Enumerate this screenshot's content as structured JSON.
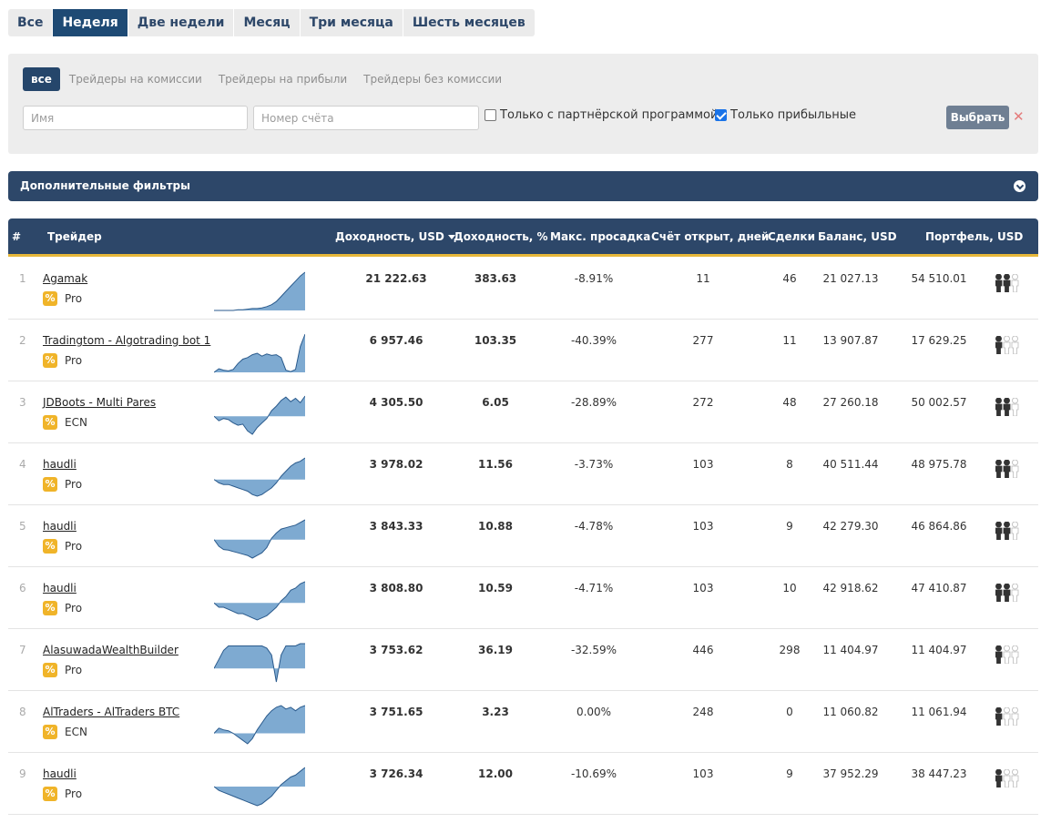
{
  "period_tabs": [
    "Все",
    "Неделя",
    "Две недели",
    "Месяц",
    "Три месяца",
    "Шесть месяцев"
  ],
  "period_active": 1,
  "type_tabs": [
    "все",
    "Трейдеры на комиссии",
    "Трейдеры на прибыли",
    "Трейдеры без комиссии"
  ],
  "type_active": 0,
  "filters": {
    "name_placeholder": "Имя",
    "account_placeholder": "Номер счёта",
    "partner_label": "Только с партнёрской программой",
    "partner_checked": false,
    "profitable_label": "Только прибыльные",
    "profitable_checked": true,
    "select_label": "Выбрать",
    "clear_icon": "close-icon"
  },
  "additional_filters": {
    "label": "Дополнительные фильтры",
    "toggle_icon": "chevron-down-icon"
  },
  "columns": {
    "num": "#",
    "trader": "Трейдер",
    "profit_usd": "Доходность, USD",
    "profit_pct": "Доходность, %",
    "drawdown": "Макс. просадка",
    "days": "Счёт открыт, дней",
    "deals": "Сделки",
    "balance": "Баланс, USD",
    "portfolio": "Портфель, USD"
  },
  "colors": {
    "navy": "#2d4769",
    "active_tab": "#1e4a74",
    "gold": "#e6b73a",
    "badge": "#f0b429",
    "spark_fill": "#7eaad1",
    "spark_line": "#2a5a8c"
  },
  "rows": [
    {
      "num": "1",
      "name": "Agamak",
      "type": "Pro",
      "profit_usd": "21 222.63",
      "profit_pct": "383.63",
      "drawdown": "-8.91%",
      "days": "11",
      "deals": "46",
      "balance": "21 027.13",
      "portfolio": "54 510.01",
      "popularity": 2,
      "spark": [
        0,
        0,
        0,
        0,
        0,
        0.1,
        0.1,
        0.2,
        0.3,
        0.3,
        0.4,
        0.6,
        0.9,
        1.4,
        2.2,
        3.0,
        3.8,
        4.6,
        5.4,
        6.0
      ]
    },
    {
      "num": "2",
      "name": "Tradingtom - Algotrading bot 1",
      "type": "Pro",
      "profit_usd": "6 957.46",
      "profit_pct": "103.35",
      "drawdown": "-40.39%",
      "days": "277",
      "deals": "11",
      "balance": "13 907.87",
      "portfolio": "17 629.25",
      "popularity": 1,
      "spark": [
        0,
        0.5,
        0.3,
        0.2,
        0.4,
        1.2,
        1.8,
        2.0,
        2.4,
        2.6,
        2.2,
        2.5,
        2.3,
        2.4,
        2.0,
        0.3,
        0.1,
        0.4,
        3.5,
        5.2
      ]
    },
    {
      "num": "3",
      "name": "JDBoots - Multi Pares",
      "type": "ECN",
      "profit_usd": "4 305.50",
      "profit_pct": "6.05",
      "drawdown": "-28.89%",
      "days": "272",
      "deals": "48",
      "balance": "27 260.18",
      "portfolio": "50 002.57",
      "popularity": 2,
      "spark": [
        0,
        -0.4,
        -0.2,
        -0.3,
        -0.6,
        -0.8,
        -0.7,
        -1.3,
        -1.6,
        -1.0,
        -0.6,
        -0.2,
        0.5,
        0.9,
        1.4,
        1.7,
        1.3,
        1.6,
        1.2,
        1.8
      ]
    },
    {
      "num": "4",
      "name": "haudli",
      "type": "Pro",
      "profit_usd": "3 978.02",
      "profit_pct": "11.56",
      "drawdown": "-3.73%",
      "days": "103",
      "deals": "8",
      "balance": "40 511.44",
      "portfolio": "48 975.78",
      "popularity": 2,
      "spark": [
        0,
        -0.2,
        -0.3,
        -0.3,
        -0.4,
        -0.5,
        -0.6,
        -0.7,
        -0.9,
        -1.0,
        -0.9,
        -0.7,
        -0.5,
        -0.2,
        0.2,
        0.5,
        0.8,
        1.0,
        1.1,
        1.3
      ]
    },
    {
      "num": "5",
      "name": "haudli",
      "type": "Pro",
      "profit_usd": "3 843.33",
      "profit_pct": "10.88",
      "drawdown": "-4.78%",
      "days": "103",
      "deals": "9",
      "balance": "42 279.30",
      "portfolio": "46 864.86",
      "popularity": 2,
      "spark": [
        0,
        -1.0,
        -1.5,
        -1.6,
        -1.8,
        -2.0,
        -2.2,
        -2.4,
        -2.8,
        -2.4,
        -2.0,
        -1.2,
        0.2,
        1.0,
        1.6,
        1.8,
        2.0,
        2.2,
        2.6,
        3.0
      ]
    },
    {
      "num": "6",
      "name": "haudli",
      "type": "Pro",
      "profit_usd": "3 808.80",
      "profit_pct": "10.59",
      "drawdown": "-4.71%",
      "days": "103",
      "deals": "10",
      "balance": "42 918.62",
      "portfolio": "47 410.87",
      "popularity": 2,
      "spark": [
        0,
        -0.2,
        -0.2,
        -0.3,
        -0.4,
        -0.5,
        -0.5,
        -0.6,
        -0.7,
        -0.8,
        -0.7,
        -0.6,
        -0.4,
        -0.2,
        0.1,
        0.3,
        0.6,
        0.7,
        0.9,
        1.0
      ]
    },
    {
      "num": "7",
      "name": "AlasuwadaWealthBuilder",
      "type": "Pro",
      "profit_usd": "3 753.62",
      "profit_pct": "36.19",
      "drawdown": "-32.59%",
      "days": "446",
      "deals": "298",
      "balance": "11 404.97",
      "portfolio": "11 404.97",
      "popularity": 1,
      "spark": [
        0,
        0.4,
        0.8,
        1.0,
        1.0,
        1.0,
        1.0,
        1.0,
        1.0,
        1.0,
        1.0,
        0.9,
        0.6,
        -0.6,
        0.6,
        1.0,
        1.0,
        1.0,
        1.1,
        1.1
      ]
    },
    {
      "num": "8",
      "name": "AlTraders - AlTraders BTC",
      "type": "ECN",
      "profit_usd": "3 751.65",
      "profit_pct": "3.23",
      "drawdown": "0.00%",
      "days": "248",
      "deals": "0",
      "balance": "11 060.82",
      "portfolio": "11 061.94",
      "popularity": 1,
      "spark": [
        0,
        0.6,
        0.4,
        0.3,
        0.0,
        -0.4,
        -0.8,
        -1.2,
        -0.6,
        0.4,
        1.2,
        2.0,
        2.6,
        3.0,
        3.2,
        2.8,
        3.0,
        2.6,
        3.0,
        3.2
      ]
    },
    {
      "num": "9",
      "name": "haudli",
      "type": "Pro",
      "profit_usd": "3 726.34",
      "profit_pct": "12.00",
      "drawdown": "-10.69%",
      "days": "103",
      "deals": "9",
      "balance": "37 952.29",
      "portfolio": "38 447.23",
      "popularity": 1,
      "spark": [
        0,
        -0.2,
        -0.3,
        -0.4,
        -0.5,
        -0.6,
        -0.7,
        -0.8,
        -0.9,
        -1.0,
        -0.9,
        -0.7,
        -0.5,
        -0.2,
        0.1,
        0.3,
        0.5,
        0.6,
        0.8,
        1.0
      ]
    }
  ]
}
